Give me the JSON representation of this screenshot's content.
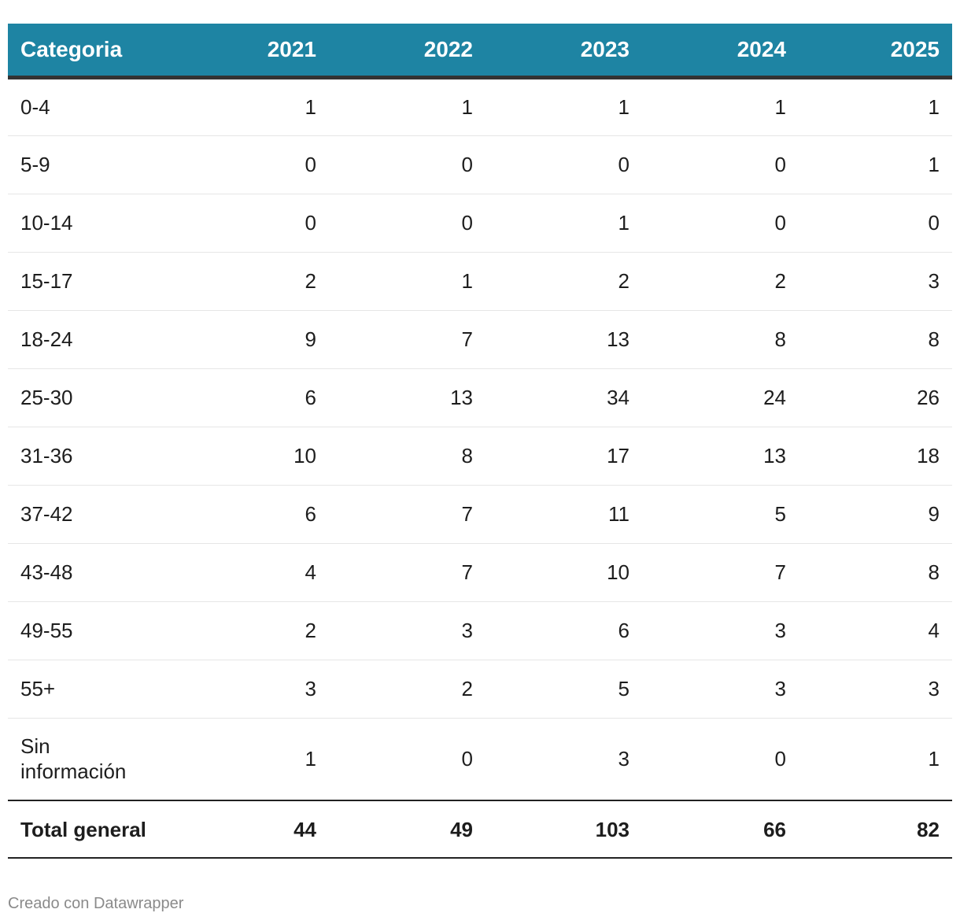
{
  "chart_data": {
    "type": "table",
    "columns": [
      "Categoria",
      "2021",
      "2022",
      "2023",
      "2024",
      "2025"
    ],
    "rows": [
      {
        "category": "0-4",
        "values": [
          "1",
          "1",
          "1",
          "1",
          "1"
        ]
      },
      {
        "category": "5-9",
        "values": [
          "0",
          "0",
          "0",
          "0",
          "1"
        ]
      },
      {
        "category": "10-14",
        "values": [
          "0",
          "0",
          "1",
          "0",
          "0"
        ]
      },
      {
        "category": "15-17",
        "values": [
          "2",
          "1",
          "2",
          "2",
          "3"
        ]
      },
      {
        "category": "18-24",
        "values": [
          "9",
          "7",
          "13",
          "8",
          "8"
        ]
      },
      {
        "category": "25-30",
        "values": [
          "6",
          "13",
          "34",
          "24",
          "26"
        ]
      },
      {
        "category": "31-36",
        "values": [
          "10",
          "8",
          "17",
          "13",
          "18"
        ]
      },
      {
        "category": "37-42",
        "values": [
          "6",
          "7",
          "11",
          "5",
          "9"
        ]
      },
      {
        "category": "43-48",
        "values": [
          "4",
          "7",
          "10",
          "7",
          "8"
        ]
      },
      {
        "category": "49-55",
        "values": [
          "2",
          "3",
          "6",
          "3",
          "4"
        ]
      },
      {
        "category": "55+",
        "values": [
          "3",
          "2",
          "5",
          "3",
          "3"
        ]
      },
      {
        "category": "Sin información",
        "values": [
          "1",
          "0",
          "3",
          "0",
          "1"
        ]
      }
    ],
    "total": {
      "category": "Total general",
      "values": [
        "44",
        "49",
        "103",
        "66",
        "82"
      ]
    }
  },
  "footer": {
    "credit": "Creado con Datawrapper"
  },
  "colors": {
    "header_bg": "#1e84a3",
    "header_text": "#ffffff",
    "credit_text": "#8a8a8a"
  }
}
